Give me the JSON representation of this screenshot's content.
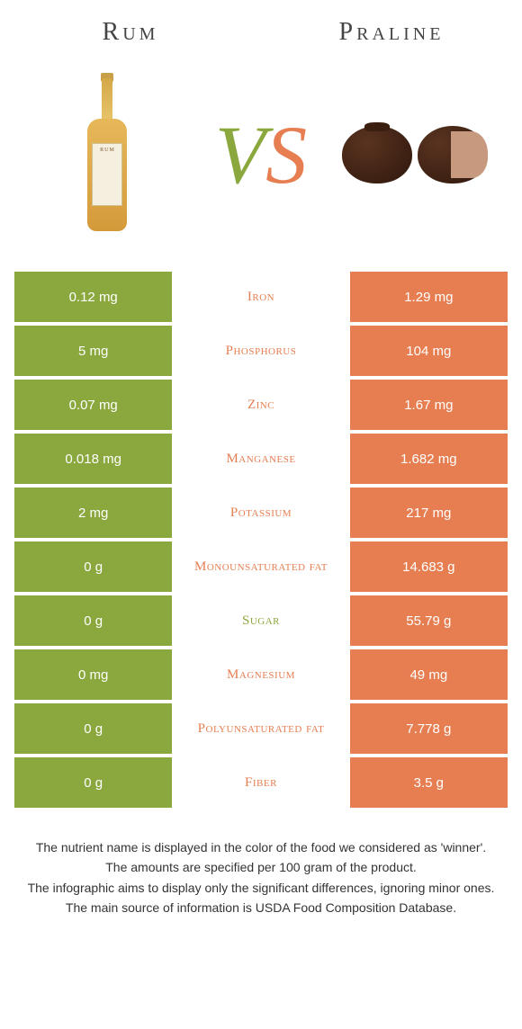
{
  "titles": {
    "left": "Rum",
    "right": "Praline"
  },
  "vs": {
    "v": "V",
    "s": "S"
  },
  "colors": {
    "left_swatch": "#8aa83d",
    "right_swatch": "#e67e51",
    "mid_bg": "#ffffff",
    "row_gap": "#ffffff"
  },
  "rows": [
    {
      "left": "0.12 mg",
      "label": "Iron",
      "right": "1.29 mg",
      "winner": "right"
    },
    {
      "left": "5 mg",
      "label": "Phosphorus",
      "right": "104 mg",
      "winner": "right"
    },
    {
      "left": "0.07 mg",
      "label": "Zinc",
      "right": "1.67 mg",
      "winner": "right"
    },
    {
      "left": "0.018 mg",
      "label": "Manganese",
      "right": "1.682 mg",
      "winner": "right"
    },
    {
      "left": "2 mg",
      "label": "Potassium",
      "right": "217 mg",
      "winner": "right"
    },
    {
      "left": "0 g",
      "label": "Monounsaturated fat",
      "right": "14.683 g",
      "winner": "right"
    },
    {
      "left": "0 g",
      "label": "Sugar",
      "right": "55.79 g",
      "winner": "left"
    },
    {
      "left": "0 mg",
      "label": "Magnesium",
      "right": "49 mg",
      "winner": "right"
    },
    {
      "left": "0 g",
      "label": "Polyunsaturated fat",
      "right": "7.778 g",
      "winner": "right"
    },
    {
      "left": "0 g",
      "label": "Fiber",
      "right": "3.5 g",
      "winner": "right"
    }
  ],
  "footnotes": [
    "The nutrient name is displayed in the color of the food we considered as 'winner'.",
    "The amounts are specified per 100 gram of the product.",
    "The infographic aims to display only the significant differences, ignoring minor ones.",
    "The main source of information is USDA Food Composition Database."
  ],
  "bottle_label": "RUM"
}
